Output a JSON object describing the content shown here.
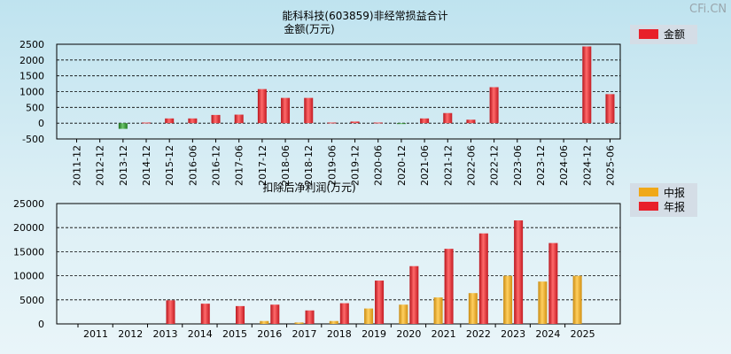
{
  "watermark": "CFi.CN",
  "colors": {
    "bar_red": "#e8202a",
    "bar_green": "#2f8f2f",
    "bar_orange": "#f0a818",
    "legend_bg": "#d4dde6"
  },
  "chart_data": [
    {
      "type": "bar",
      "title": "能科科技(603859)非经常损益合计",
      "subtitle": "金额(万元)",
      "legend": [
        {
          "name": "金额",
          "color": "#e8202a"
        }
      ],
      "legend_position": "top-right",
      "grid": true,
      "ylim": [
        -500,
        2500
      ],
      "yticks": [
        -500,
        0,
        500,
        1000,
        1500,
        2000,
        2500
      ],
      "categories": [
        "2011-12",
        "2012-12",
        "2013-12",
        "2014-12",
        "2015-12",
        "2016-06",
        "2016-12",
        "2017-06",
        "2017-12",
        "2018-06",
        "2018-12",
        "2019-06",
        "2019-12",
        "2020-06",
        "2020-12",
        "2021-06",
        "2021-12",
        "2022-06",
        "2022-12",
        "2023-06",
        "2023-12",
        "2024-06",
        "2024-12",
        "2025-06"
      ],
      "series": [
        {
          "name": "金额",
          "values": [
            0,
            0,
            -180,
            20,
            150,
            150,
            260,
            270,
            1080,
            800,
            800,
            20,
            50,
            20,
            -20,
            150,
            320,
            110,
            1140,
            0,
            0,
            0,
            2430,
            920
          ]
        }
      ]
    },
    {
      "type": "bar",
      "title": "扣除后净利润(万元)",
      "legend": [
        {
          "name": "中报",
          "color": "#f0a818"
        },
        {
          "name": "年报",
          "color": "#e8202a"
        }
      ],
      "legend_position": "top-right",
      "grid": true,
      "ylim": [
        0,
        25000
      ],
      "yticks": [
        0,
        5000,
        10000,
        15000,
        20000,
        25000
      ],
      "categories": [
        "2011",
        "2012",
        "2013",
        "2014",
        "2015",
        "2016",
        "2017",
        "2018",
        "2019",
        "2020",
        "2021",
        "2022",
        "2023",
        "2024",
        "2025"
      ],
      "series": [
        {
          "name": "中报",
          "values": [
            0,
            0,
            0,
            0,
            0,
            600,
            300,
            600,
            3200,
            4000,
            5500,
            6400,
            10000,
            8800,
            10000
          ]
        },
        {
          "name": "年报",
          "values": [
            0,
            0,
            4900,
            4200,
            3700,
            4000,
            2800,
            4300,
            9000,
            12000,
            15600,
            18800,
            21500,
            16800,
            null
          ]
        }
      ]
    }
  ]
}
